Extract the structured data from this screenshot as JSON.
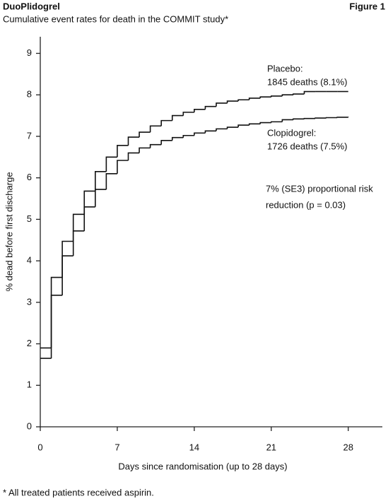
{
  "header": {
    "title": "DuoPlidogrel",
    "figure": "Figure 1",
    "footnote": "* All treated patients received aspirin."
  },
  "chart_data": {
    "type": "step",
    "title": "Cumulative event rates for death in the COMMIT study*",
    "x_label": "Days since randomisation (up to 28 days)",
    "y_label": "% dead before first discharge",
    "x": [
      0,
      1,
      2,
      3,
      4,
      5,
      6,
      7,
      8,
      9,
      10,
      11,
      12,
      13,
      14,
      15,
      16,
      17,
      18,
      19,
      20,
      21,
      22,
      23,
      24,
      25,
      26,
      27,
      28
    ],
    "series": [
      {
        "name": "Placebo:",
        "detail": "1845 deaths (8.1%)",
        "color": "#111111",
        "values": [
          1.9,
          3.6,
          4.47,
          5.12,
          5.68,
          6.15,
          6.5,
          6.78,
          6.98,
          7.1,
          7.25,
          7.38,
          7.5,
          7.58,
          7.65,
          7.72,
          7.8,
          7.85,
          7.88,
          7.92,
          7.95,
          7.97,
          8.0,
          8.02,
          8.08,
          8.08,
          8.08,
          8.08,
          8.08
        ]
      },
      {
        "name": "Clopidogrel:",
        "detail": "1726 deaths (7.5%)",
        "color": "#111111",
        "values": [
          1.65,
          3.17,
          4.12,
          4.72,
          5.3,
          5.72,
          6.1,
          6.42,
          6.6,
          6.72,
          6.8,
          6.9,
          6.97,
          7.02,
          7.08,
          7.13,
          7.18,
          7.22,
          7.27,
          7.3,
          7.33,
          7.35,
          7.4,
          7.42,
          7.43,
          7.44,
          7.45,
          7.46,
          7.47
        ]
      }
    ],
    "annotations": [
      "7% (SE3) proportional risk",
      "reduction (p = 0.03)"
    ],
    "xlim": [
      0,
      31.1
    ],
    "xticks": [
      0,
      7,
      14,
      21,
      28
    ],
    "ylim": [
      0,
      9.4
    ],
    "yticks": [
      0,
      1,
      2,
      3,
      4,
      5,
      6,
      7,
      8,
      9
    ]
  }
}
